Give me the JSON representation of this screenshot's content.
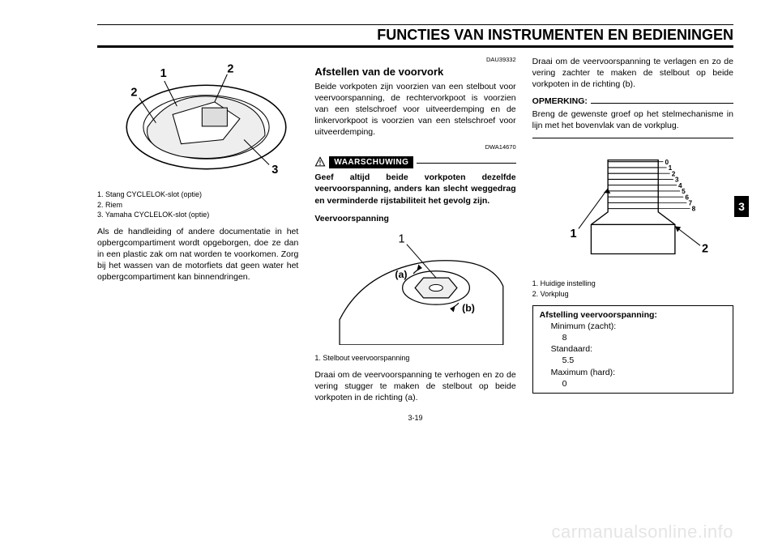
{
  "header": {
    "title": "FUNCTIES VAN INSTRUMENTEN EN BEDIENINGEN"
  },
  "tab": {
    "label": "3"
  },
  "col1": {
    "fig_labels": {
      "n1": "1",
      "n2a": "2",
      "n2b": "2",
      "n3": "3"
    },
    "captions": [
      "1. Stang CYCLELOK-slot (optie)",
      "2. Riem",
      "3. Yamaha CYCLELOK-slot (optie)"
    ],
    "body": "Als de handleiding of andere documentatie in het opbergcompartiment wordt opgeborgen, doe ze dan in een plastic zak om nat worden te voorkomen. Zorg bij het wassen van de motorfiets dat geen water het opbergcompartiment kan binnendringen."
  },
  "col2": {
    "ref1": "DAU39332",
    "heading": "Afstellen van de voorvork",
    "p1": "Beide vorkpoten zijn voorzien van een stelbout voor veervoorspanning, de rechtervorkpoot is voorzien van een stelschroef voor uitveerdemping en de linkervorkpoot is voorzien van een stelschroef voor uitveerdemping.",
    "ref2": "DWA14670",
    "warn_label": "WAARSCHUWING",
    "warn_body": "Geef altijd beide vorkpoten dezelfde veervoorspanning, anders kan slecht weggedrag en verminderde rijstabiliteit het gevolg zijn.",
    "sub": "Veervoorspanning",
    "fig_labels": {
      "n1": "1",
      "a": "(a)",
      "b": "(b)"
    },
    "caption": "1. Stelbout veervoorspanning",
    "p2": "Draai om de veervoorspanning te verhogen en zo de vering stugger te maken de stelbout op beide vorkpoten in de richting (a)."
  },
  "col3": {
    "p1": "Draai om de veervoorspanning te verlagen en zo de vering zachter te maken de stelbout op beide vorkpoten in de richting (b).",
    "opm_label": "OPMERKING:",
    "opm_body": "Breng de gewenste groef op het stelmechanisme in lijn met het bovenvlak van de vorkplug.",
    "fig_labels": {
      "n1": "1",
      "n2": "2",
      "scale": [
        "0",
        "1",
        "2",
        "3",
        "4",
        "5",
        "6",
        "7",
        "8"
      ]
    },
    "captions": [
      "1. Huidige instelling",
      "2. Vorkplug"
    ],
    "spec": {
      "title": "Afstelling veervoorspanning:",
      "rows": [
        {
          "label": "Minimum (zacht):",
          "value": "8"
        },
        {
          "label": "Standaard:",
          "value": "5.5"
        },
        {
          "label": "Maximum (hard):",
          "value": "0"
        }
      ]
    }
  },
  "pagenum": "3-19",
  "watermark": "carmanualsonline.info"
}
